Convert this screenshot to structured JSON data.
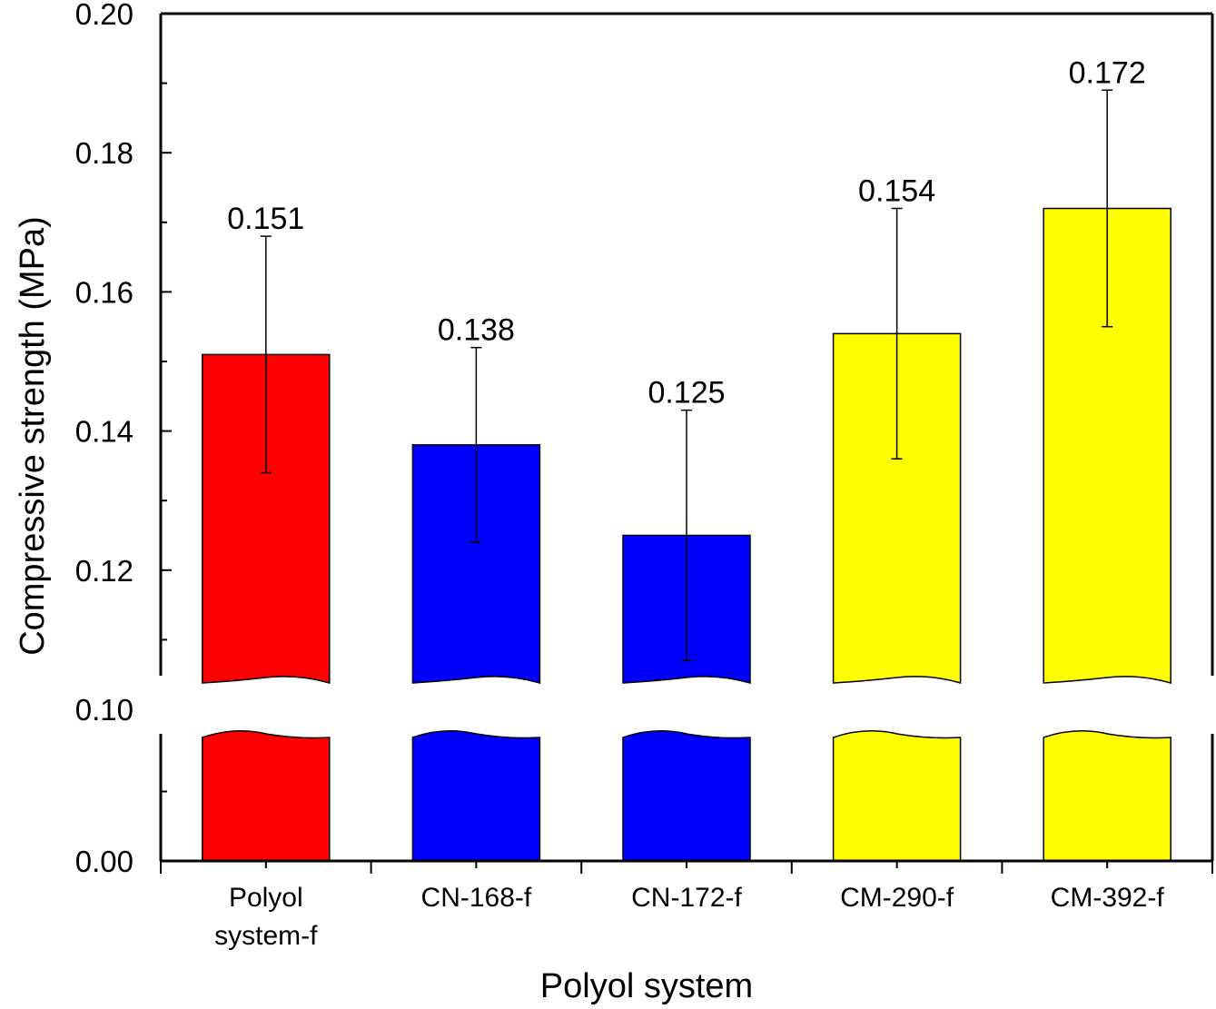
{
  "chart_data": {
    "type": "bar",
    "title": "",
    "xlabel": "Polyol system",
    "ylabel": "Compressive strength (MPa)",
    "categories": [
      "Polyol system-f",
      "CN-168-f",
      "CN-172-f",
      "CM-290-f",
      "CM-392-f"
    ],
    "category_lines": [
      [
        "Polyol",
        "system-f"
      ],
      [
        "CN-168-f"
      ],
      [
        "CN-172-f"
      ],
      [
        "CM-290-f"
      ],
      [
        "CM-392-f"
      ]
    ],
    "values": [
      0.151,
      0.138,
      0.125,
      0.154,
      0.172
    ],
    "value_labels": [
      "0.151",
      "0.138",
      "0.125",
      "0.154",
      "0.172"
    ],
    "error_low": [
      0.134,
      0.124,
      0.107,
      0.136,
      0.155
    ],
    "error_high": [
      0.168,
      0.152,
      0.143,
      0.172,
      0.189
    ],
    "colors": [
      "#ff0000",
      "#0000ff",
      "#0000ff",
      "#ffff00",
      "#ffff00"
    ],
    "ylim": [
      0,
      0.2
    ],
    "axis_break": [
      0.1,
      0.1
    ],
    "yticks": [
      "0.00",
      "0.10",
      "0.12",
      "0.14",
      "0.16",
      "0.18",
      "0.20"
    ],
    "ytick_values": [
      0.0,
      0.1,
      0.12,
      0.14,
      0.16,
      0.18,
      0.2
    ],
    "grid": false,
    "legend": "none"
  }
}
